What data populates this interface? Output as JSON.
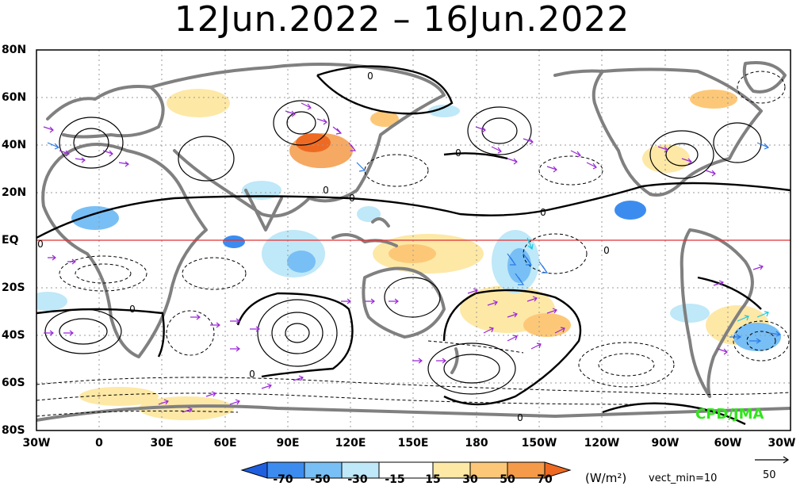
{
  "title": "12Jun.2022 – 16Jun.2022",
  "lat_labels": [
    "80N",
    "60N",
    "40N",
    "20N",
    "EQ",
    "20S",
    "40S",
    "60S",
    "80S"
  ],
  "lon_labels": [
    "30W",
    "0",
    "30E",
    "60E",
    "90E",
    "120E",
    "150E",
    "180",
    "150W",
    "120W",
    "90W",
    "60W",
    "30W"
  ],
  "colorbar": {
    "ticks": [
      "-70",
      "-50",
      "-30",
      "-15",
      "15",
      "30",
      "50",
      "70"
    ],
    "colors": [
      "#1e5fe0",
      "#3c8cf0",
      "#78bff5",
      "#bfe8f8",
      "#ffffff",
      "#fde8a6",
      "#fcc878",
      "#f59a48",
      "#ee6a22"
    ],
    "unit": "(W/m²)",
    "vector_min": "vect_min=10",
    "reference_vector": "50"
  },
  "credit": "CPD/JMA",
  "contour_labels": [
    "0",
    "0",
    "0",
    "0",
    "0",
    "0",
    "0",
    "0",
    "0",
    "0"
  ],
  "map_style": {
    "ocean": "#ffffff",
    "land_outline": "#808080",
    "equator_line": "#e03030",
    "positive_contour": "#000000",
    "negative_contour": "dashed black",
    "vectors": [
      "#9a28d8",
      "#2a7ae8",
      "#18c8e0"
    ],
    "grid": "dotted gray"
  }
}
